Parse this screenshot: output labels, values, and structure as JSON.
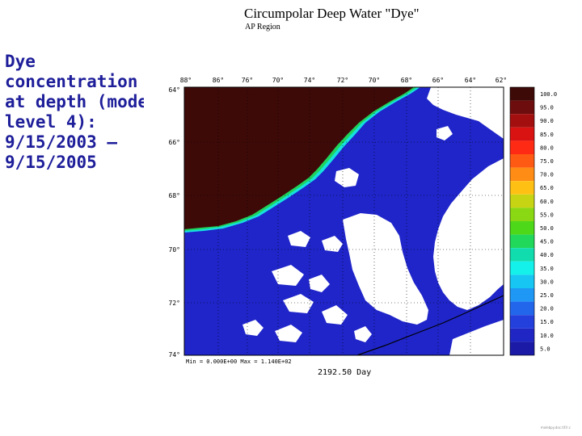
{
  "caption": {
    "lines": [
      "Dye",
      "concentration",
      "at depth (mode",
      "level 4):",
      "9/15/2003 –",
      "9/15/2005"
    ]
  },
  "map": {
    "title": "Circumpolar Deep Water \"Dye\"",
    "subtitle": "AP Region",
    "longitude_labels": [
      "88°",
      "86°",
      "76°",
      "70°",
      "74°",
      "72°",
      "70°",
      "68°",
      "66°",
      "64°",
      "62°"
    ],
    "latitude_labels": [
      "64°",
      "66°",
      "68°",
      "70°",
      "72°",
      "74°"
    ],
    "minmax_text": "Min = 0.000E+00   Max = 1.140E+02",
    "time_label": "2192.50 Day",
    "colors": {
      "ocean_low": "#1f25c9",
      "high_concentration": "#3d0a08",
      "land": "#ffffff",
      "grid": "#000000"
    }
  },
  "colorbar": {
    "labels": [
      "100.0",
      "95.0",
      "90.0",
      "85.0",
      "80.0",
      "75.0",
      "70.0",
      "65.0",
      "60.0",
      "55.0",
      "50.0",
      "45.0",
      "40.0",
      "35.0",
      "30.0",
      "25.0",
      "20.0",
      "15.0",
      "10.0",
      "5.0"
    ],
    "colors": [
      "#3d0a08",
      "#6e0d0d",
      "#a30e0e",
      "#d91212",
      "#ff2a14",
      "#ff5a14",
      "#ff8c14",
      "#ffc014",
      "#c6d414",
      "#8ad814",
      "#4ed81a",
      "#22d85a",
      "#10dcae",
      "#14f0ea",
      "#18c6f4",
      "#1e98f4",
      "#2266ec",
      "#2440dc",
      "#1f26c4",
      "#1a1aa6"
    ]
  },
  "footer": {
    "text": "molebpy.doc.tif.ll.c"
  }
}
